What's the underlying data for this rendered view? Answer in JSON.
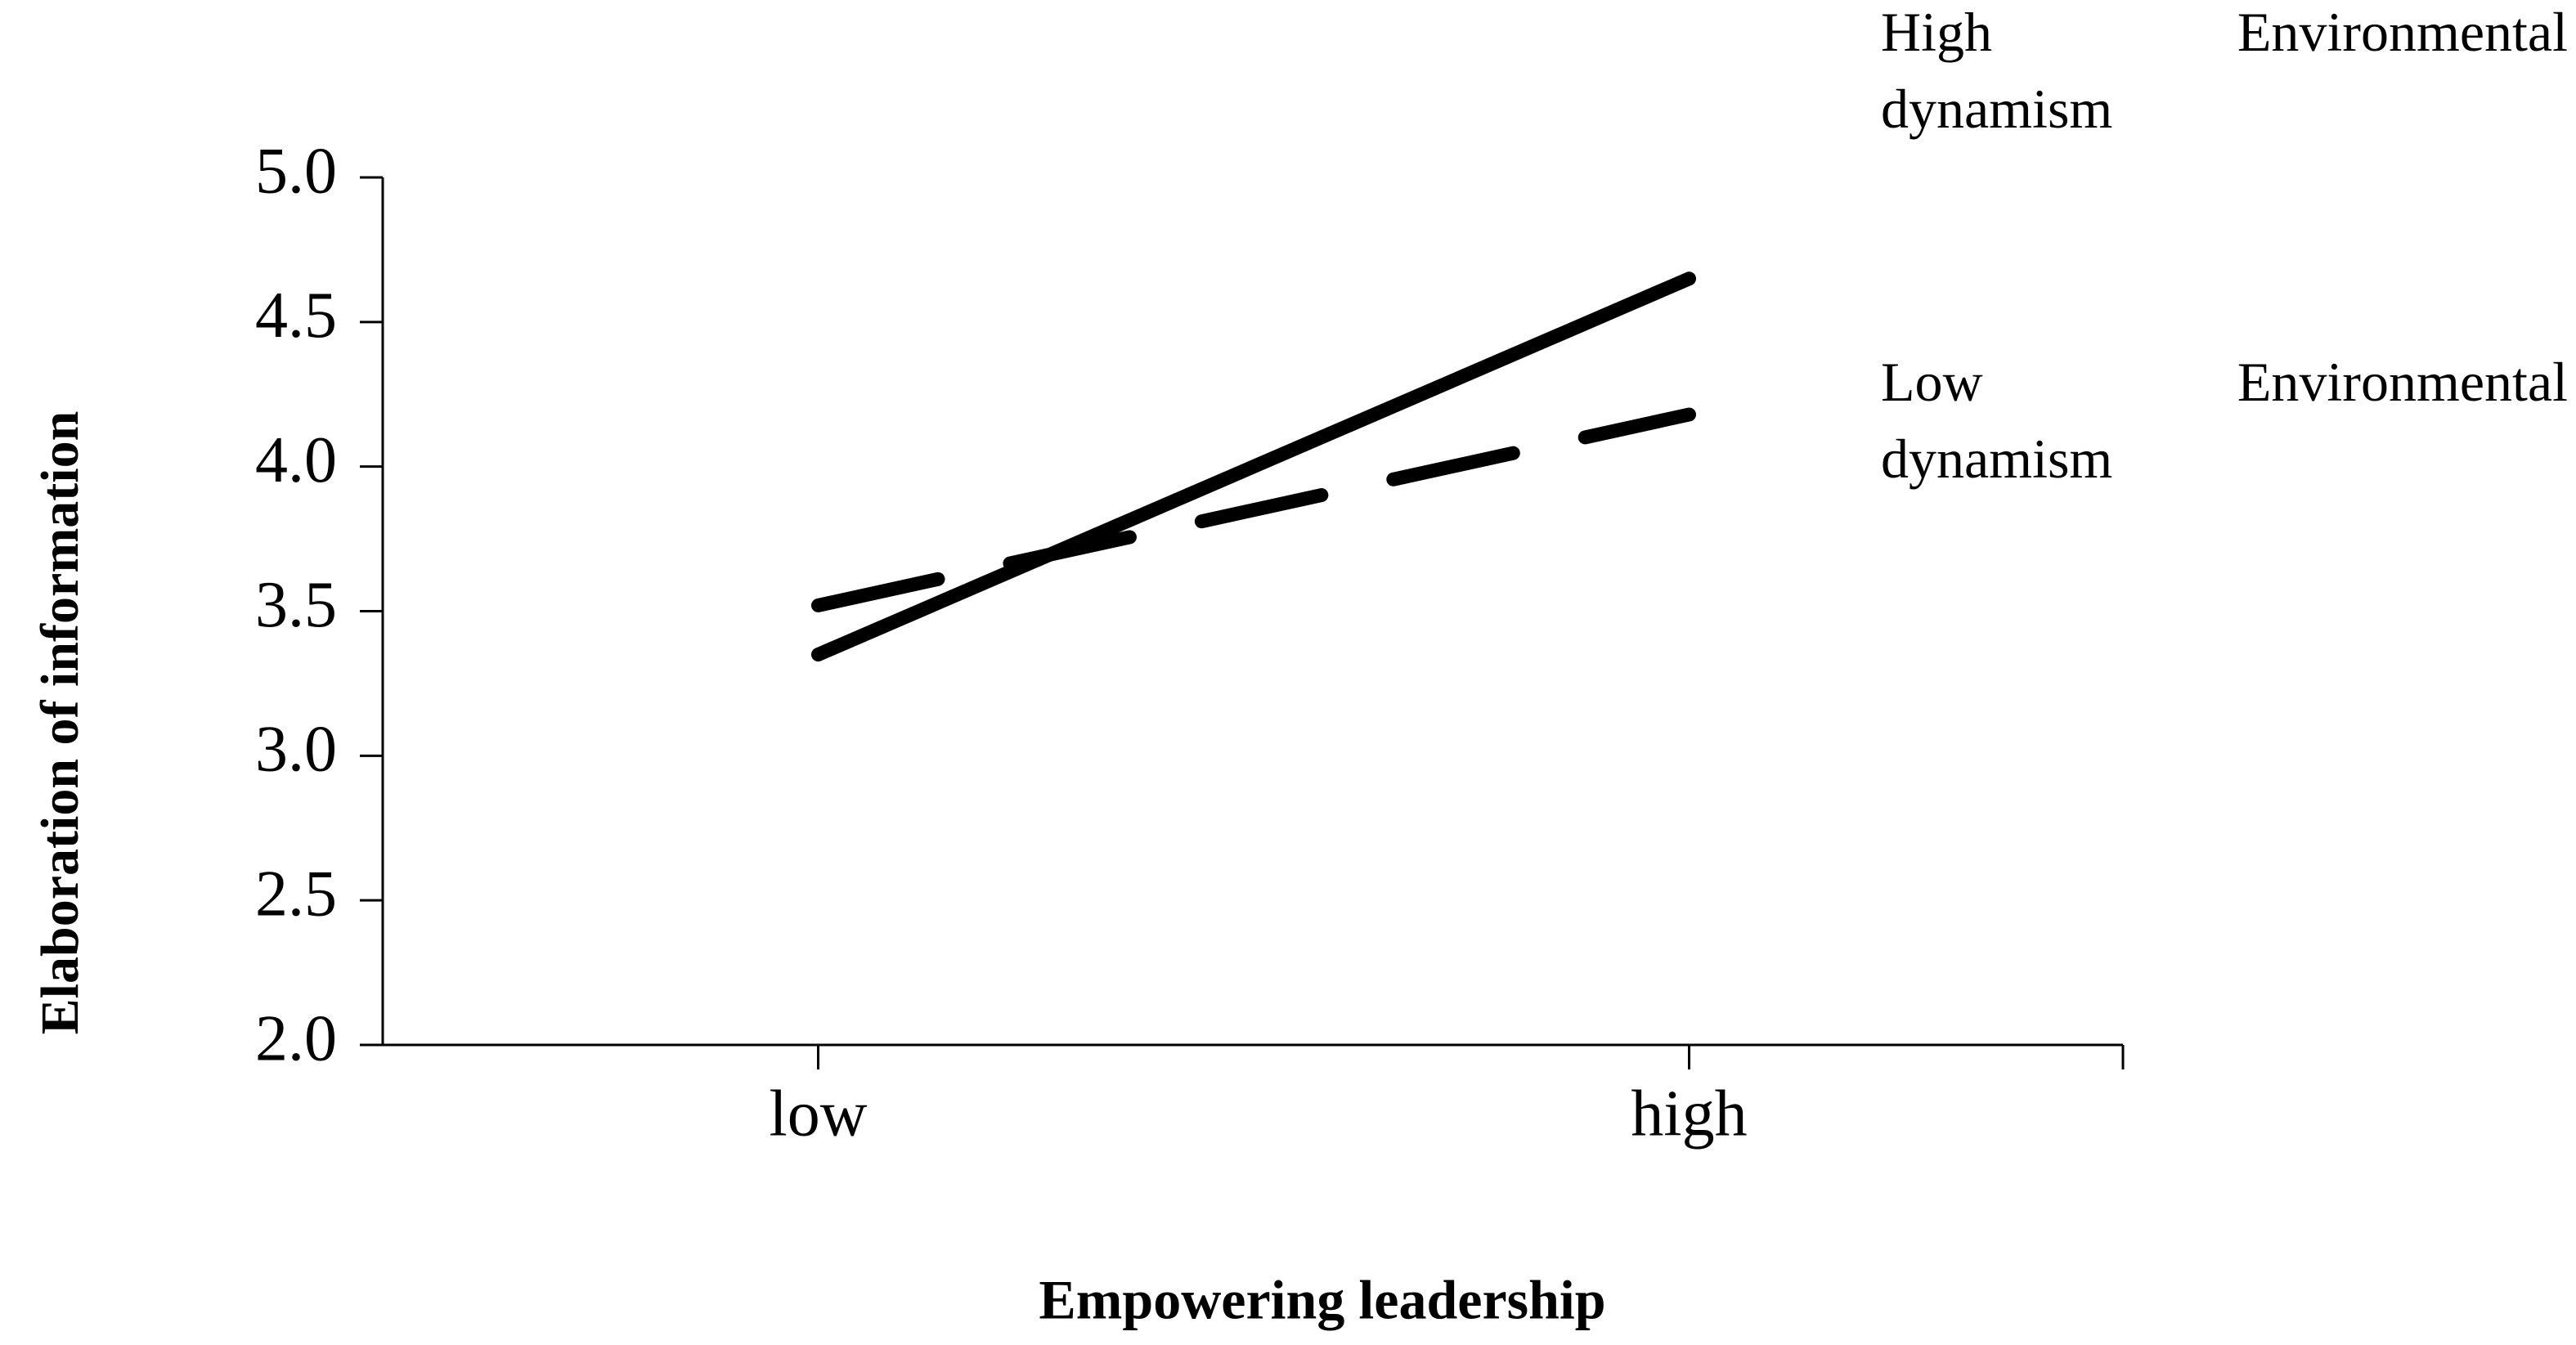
{
  "chart_data": {
    "type": "line",
    "x_label": "Empowering leadership",
    "y_label": "Elaboration of information",
    "categories": [
      "low",
      "high"
    ],
    "series": [
      {
        "name": "High Environmental dynamism",
        "color": "#000000",
        "dash": "solid",
        "values": [
          3.35,
          4.65
        ]
      },
      {
        "name": "Low Environmental dynamism",
        "color": "#000000",
        "dash": "dashed",
        "values": [
          3.52,
          4.18
        ]
      }
    ],
    "ylim": [
      2.0,
      5.0
    ],
    "yticks": [
      {
        "value": 2,
        "label": "2.0"
      },
      {
        "value": 2.5,
        "label": "2.5"
      },
      {
        "value": 3,
        "label": "3.0"
      },
      {
        "value": 3.5,
        "label": "3.5"
      },
      {
        "value": 4,
        "label": "4.0"
      },
      {
        "value": 4.5,
        "label": "4.5"
      },
      {
        "value": 5,
        "label": "5.0"
      }
    ],
    "grid": false
  }
}
